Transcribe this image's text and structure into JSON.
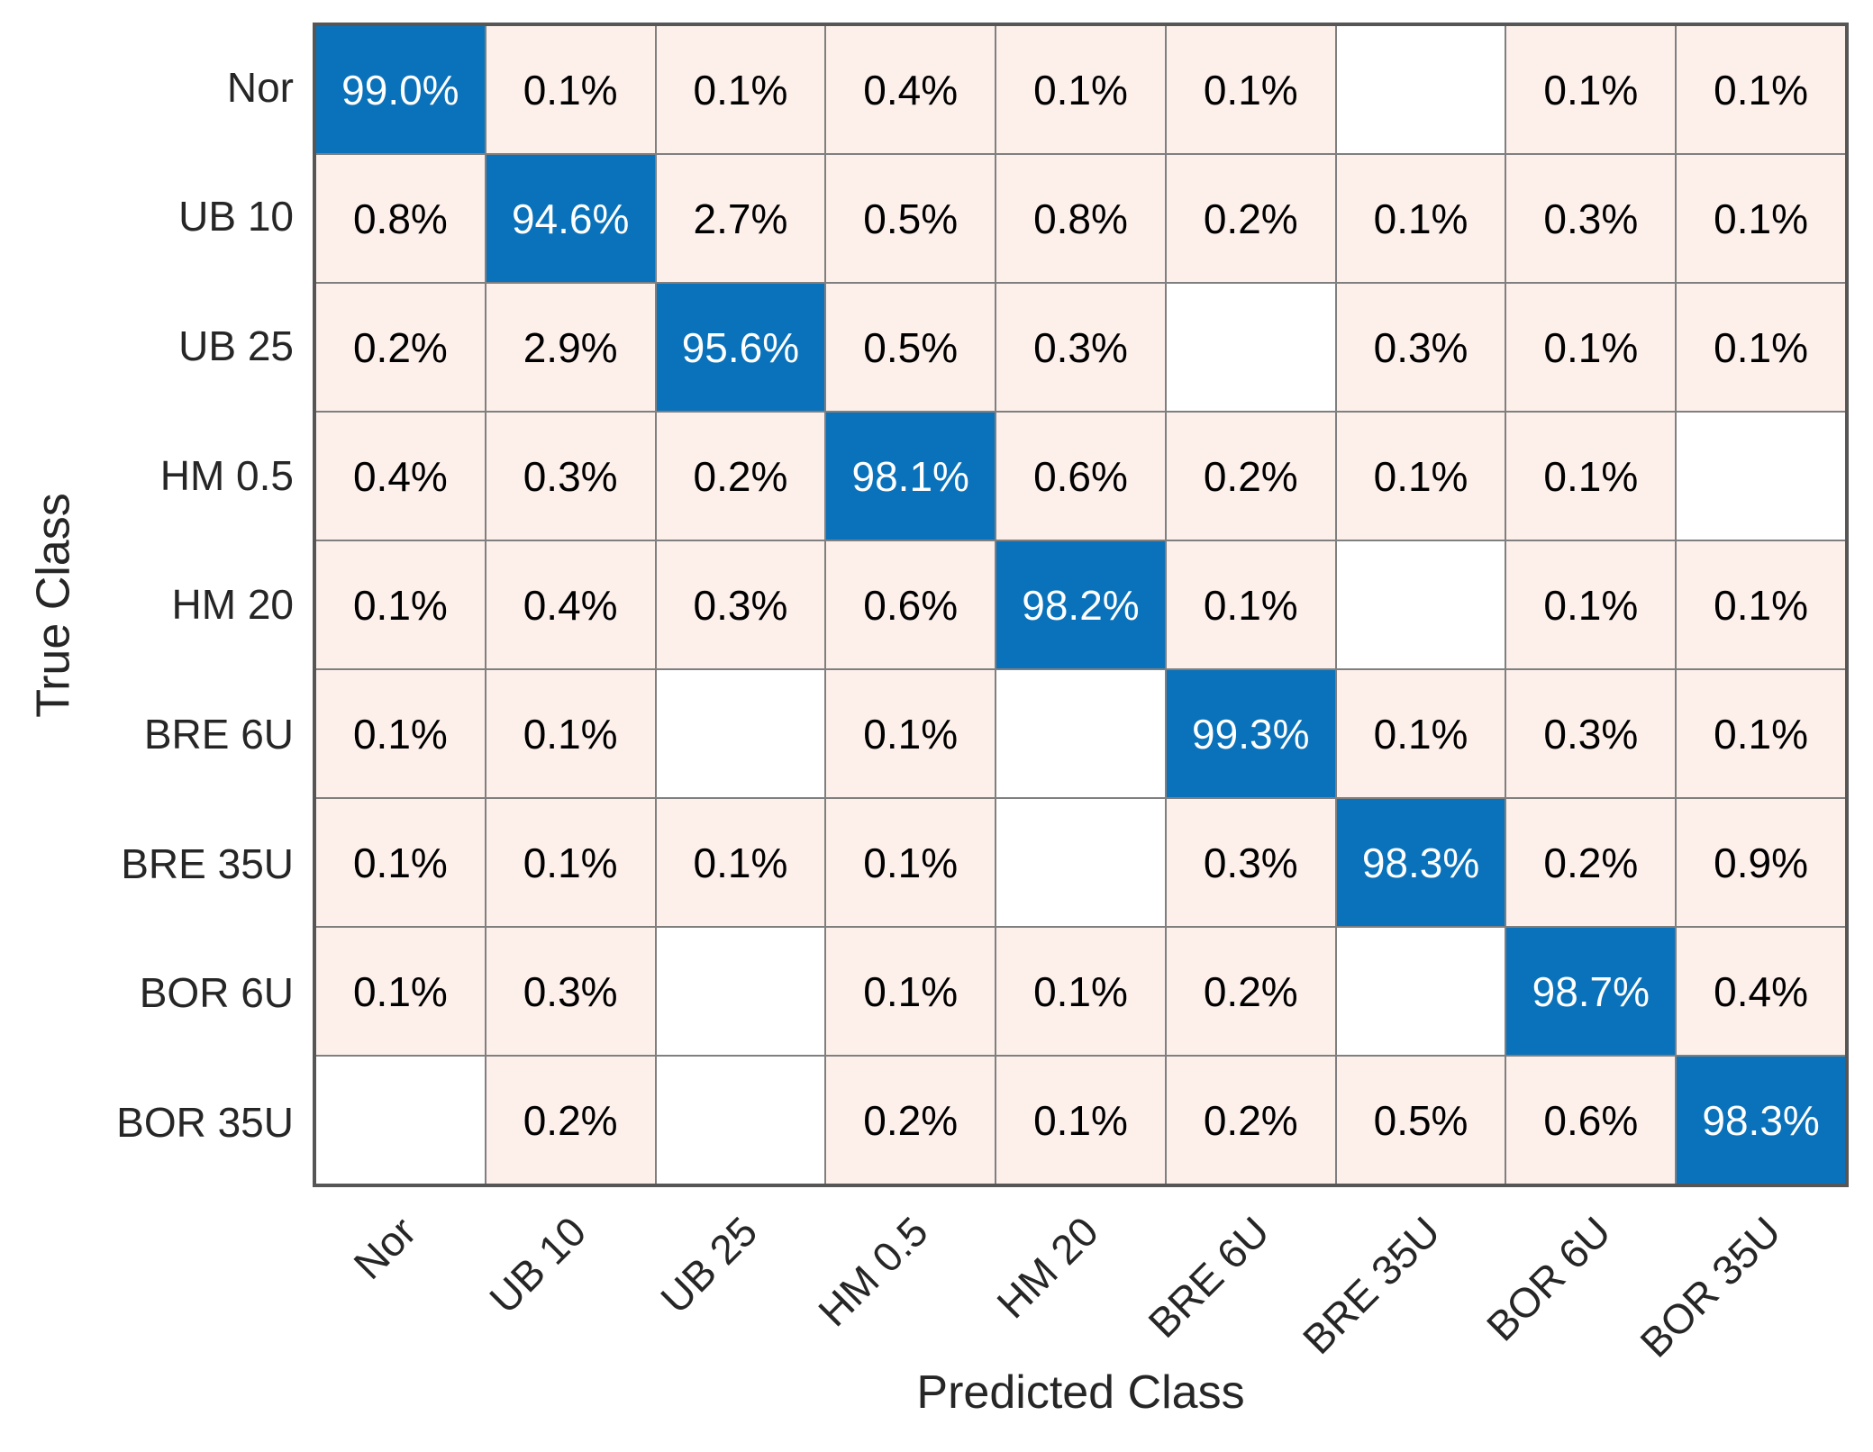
{
  "chart_data": {
    "type": "heatmap",
    "subtype": "confusion-matrix",
    "xlabel": "Predicted Class",
    "ylabel": "True Class",
    "classes": [
      "Nor",
      "UB 10",
      "UB 25",
      "HM 0.5",
      "HM 20",
      "BRE 6U",
      "BRE 35U",
      "BOR 6U",
      "BOR 35U"
    ],
    "unit": "%",
    "value_decimals": 1,
    "matrix": [
      [
        99.0,
        0.1,
        0.1,
        0.4,
        0.1,
        0.1,
        null,
        0.1,
        0.1
      ],
      [
        0.8,
        94.6,
        2.7,
        0.5,
        0.8,
        0.2,
        0.1,
        0.3,
        0.1
      ],
      [
        0.2,
        2.9,
        95.6,
        0.5,
        0.3,
        null,
        0.3,
        0.1,
        0.1
      ],
      [
        0.4,
        0.3,
        0.2,
        98.1,
        0.6,
        0.2,
        0.1,
        0.1,
        null
      ],
      [
        0.1,
        0.4,
        0.3,
        0.6,
        98.2,
        0.1,
        null,
        0.1,
        0.1
      ],
      [
        0.1,
        0.1,
        null,
        0.1,
        null,
        99.3,
        0.1,
        0.3,
        0.1
      ],
      [
        0.1,
        0.1,
        0.1,
        0.1,
        null,
        0.3,
        98.3,
        0.2,
        0.9
      ],
      [
        0.1,
        0.3,
        null,
        0.1,
        0.1,
        0.2,
        null,
        98.7,
        0.4
      ],
      [
        null,
        0.2,
        null,
        0.2,
        0.1,
        0.2,
        0.5,
        0.6,
        98.3
      ]
    ],
    "colors": {
      "diagonal_fill": "#0a72ba",
      "off_diagonal_fill": "#fdf0eb",
      "empty_fill": "#ffffff",
      "diagonal_text": "#ffffff",
      "off_diagonal_text": "#000000",
      "grid_line": "#7f7f7f",
      "outer_border": "#565656",
      "label_text": "#262626"
    },
    "legend": "none",
    "grid": true
  }
}
